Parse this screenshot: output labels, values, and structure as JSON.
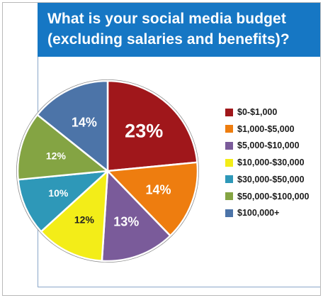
{
  "header": {
    "title_line1": "What is your social media budget",
    "title_line2": "(excluding salaries and benefits)?"
  },
  "chart_data": {
    "type": "pie",
    "title": "What is your social media budget (excluding salaries and benefits)?",
    "legend_position": "right",
    "slices": [
      {
        "label": "$0-$1,000",
        "value": 23,
        "display": "23%",
        "color": "#a0171b"
      },
      {
        "label": "$1,000-$5,000",
        "value": 14,
        "display": "14%",
        "color": "#ee7d0f"
      },
      {
        "label": "$5,000-$10,000",
        "value": 13,
        "display": "13%",
        "color": "#7a5b9a"
      },
      {
        "label": "$10,000-$30,000",
        "value": 12,
        "display": "12%",
        "color": "#f3ed18"
      },
      {
        "label": "$30,000-$50,000",
        "value": 10,
        "display": "10%",
        "color": "#2e98b8"
      },
      {
        "label": "$50,000-$100,000",
        "value": 12,
        "display": "12%",
        "color": "#84a443"
      },
      {
        "label": "$100,000+",
        "value": 14,
        "display": "14%",
        "color": "#4c74a8"
      }
    ]
  }
}
